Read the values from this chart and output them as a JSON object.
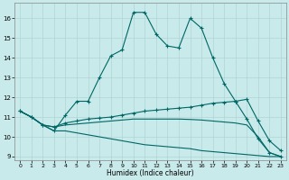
{
  "xlabel": "Humidex (Indice chaleur)",
  "background_color": "#c8eaea",
  "grid_color": "#b0d4d4",
  "line_color": "#006666",
  "xlim": [
    -0.5,
    23.5
  ],
  "ylim": [
    8.8,
    16.8
  ],
  "xticks": [
    0,
    1,
    2,
    3,
    4,
    5,
    6,
    7,
    8,
    9,
    10,
    11,
    12,
    13,
    14,
    15,
    16,
    17,
    18,
    19,
    20,
    21,
    22,
    23
  ],
  "yticks": [
    9,
    10,
    11,
    12,
    13,
    14,
    15,
    16
  ],
  "line1_x": [
    0,
    1,
    2,
    3,
    4,
    5,
    6,
    7,
    8,
    9,
    10,
    11,
    12,
    13,
    14,
    15,
    16,
    17,
    18,
    19,
    20,
    21,
    22,
    23
  ],
  "line1_y": [
    11.3,
    11.0,
    10.6,
    10.3,
    11.1,
    11.8,
    11.8,
    13.0,
    14.1,
    14.4,
    16.3,
    16.3,
    15.2,
    14.6,
    14.5,
    16.0,
    15.5,
    14.0,
    12.7,
    11.8,
    11.9,
    10.8,
    9.8,
    9.3
  ],
  "line2_x": [
    0,
    1,
    2,
    3,
    4,
    5,
    6,
    7,
    8,
    9,
    10,
    11,
    12,
    13,
    14,
    15,
    16,
    17,
    18,
    19,
    20,
    21,
    22,
    23
  ],
  "line2_y": [
    11.3,
    11.0,
    10.6,
    10.5,
    10.7,
    10.8,
    10.9,
    10.95,
    11.0,
    11.1,
    11.2,
    11.3,
    11.35,
    11.4,
    11.45,
    11.5,
    11.6,
    11.7,
    11.75,
    11.8,
    10.9,
    9.9,
    9.2,
    9.0
  ],
  "line3_x": [
    0,
    1,
    2,
    3,
    4,
    5,
    6,
    7,
    8,
    9,
    10,
    11,
    12,
    13,
    14,
    15,
    16,
    17,
    18,
    19,
    20,
    21,
    22,
    23
  ],
  "line3_y": [
    11.3,
    11.0,
    10.6,
    10.5,
    10.6,
    10.65,
    10.7,
    10.75,
    10.8,
    10.85,
    10.9,
    10.9,
    10.9,
    10.9,
    10.9,
    10.88,
    10.85,
    10.8,
    10.75,
    10.7,
    10.6,
    10.0,
    9.2,
    9.0
  ],
  "line4_x": [
    0,
    1,
    2,
    3,
    4,
    5,
    6,
    7,
    8,
    9,
    10,
    11,
    12,
    13,
    14,
    15,
    16,
    17,
    18,
    19,
    20,
    21,
    22,
    23
  ],
  "line4_y": [
    11.3,
    11.0,
    10.6,
    10.3,
    10.3,
    10.2,
    10.1,
    10.0,
    9.9,
    9.8,
    9.7,
    9.6,
    9.55,
    9.5,
    9.45,
    9.4,
    9.3,
    9.25,
    9.2,
    9.15,
    9.1,
    9.05,
    9.0,
    9.0
  ]
}
